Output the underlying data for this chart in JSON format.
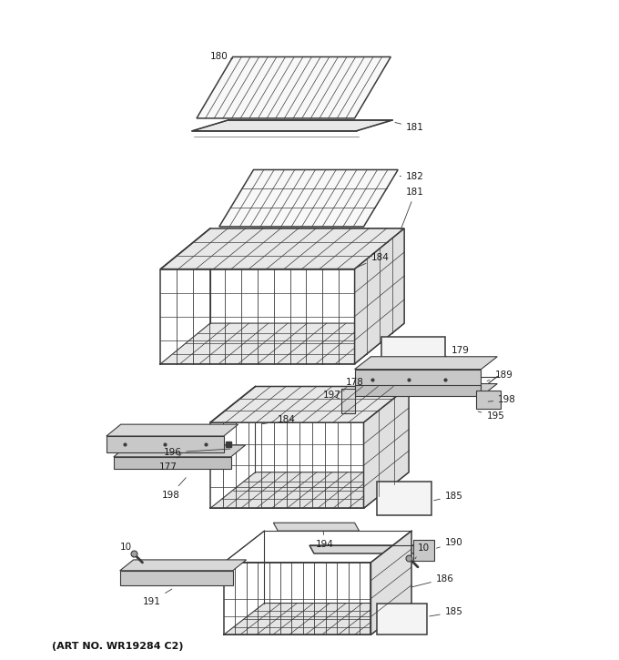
{
  "art_no": "(ART NO. WR19284 C2)",
  "bg": "#ffffff",
  "lc": "#3a3a3a",
  "figsize": [
    6.8,
    7.25
  ],
  "dpi": 100,
  "label_fs": 7.5
}
